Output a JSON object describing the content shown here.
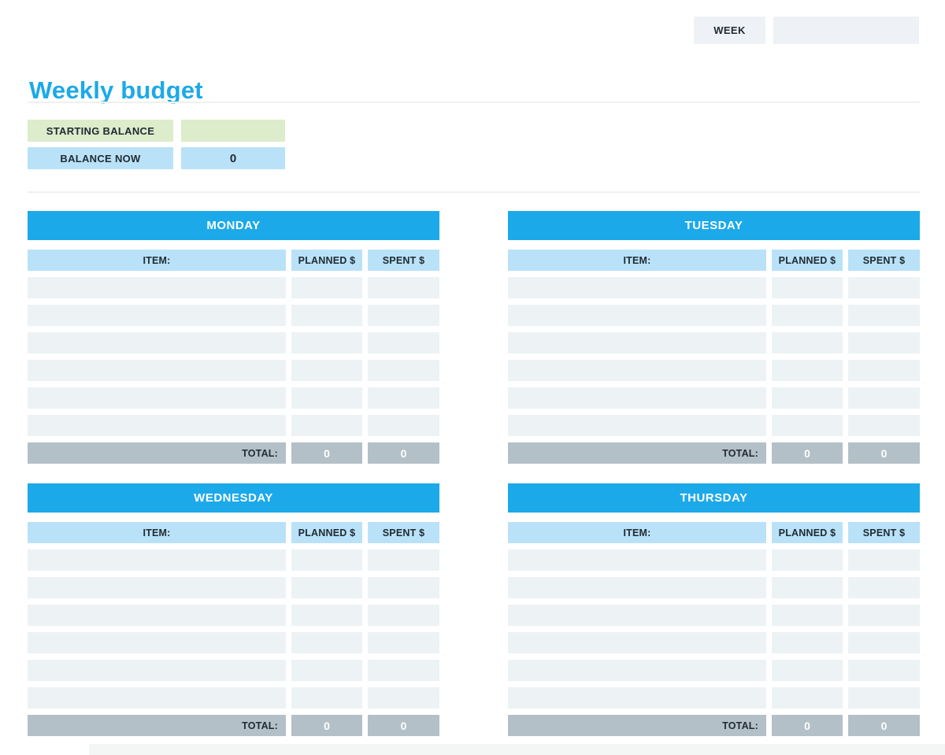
{
  "header": {
    "week_label": "WEEK",
    "week_value": ""
  },
  "title": "Weekly budget",
  "balance": {
    "starting_label": "STARTING BALANCE",
    "starting_value": "",
    "now_label": "BALANCE NOW",
    "now_value": "0"
  },
  "column_headers": {
    "item": "ITEM:",
    "planned": "PLANNED $",
    "spent": "SPENT $"
  },
  "total_label": "TOTAL:",
  "days": [
    {
      "name": "MONDAY",
      "rows": [
        {
          "item": "",
          "planned": "",
          "spent": ""
        },
        {
          "item": "",
          "planned": "",
          "spent": ""
        },
        {
          "item": "",
          "planned": "",
          "spent": ""
        },
        {
          "item": "",
          "planned": "",
          "spent": ""
        },
        {
          "item": "",
          "planned": "",
          "spent": ""
        },
        {
          "item": "",
          "planned": "",
          "spent": ""
        }
      ],
      "total": {
        "planned": "0",
        "spent": "0"
      }
    },
    {
      "name": "TUESDAY",
      "rows": [
        {
          "item": "",
          "planned": "",
          "spent": ""
        },
        {
          "item": "",
          "planned": "",
          "spent": ""
        },
        {
          "item": "",
          "planned": "",
          "spent": ""
        },
        {
          "item": "",
          "planned": "",
          "spent": ""
        },
        {
          "item": "",
          "planned": "",
          "spent": ""
        },
        {
          "item": "",
          "planned": "",
          "spent": ""
        }
      ],
      "total": {
        "planned": "0",
        "spent": "0"
      }
    },
    {
      "name": "WEDNESDAY",
      "rows": [
        {
          "item": "",
          "planned": "",
          "spent": ""
        },
        {
          "item": "",
          "planned": "",
          "spent": ""
        },
        {
          "item": "",
          "planned": "",
          "spent": ""
        },
        {
          "item": "",
          "planned": "",
          "spent": ""
        },
        {
          "item": "",
          "planned": "",
          "spent": ""
        },
        {
          "item": "",
          "planned": "",
          "spent": ""
        }
      ],
      "total": {
        "planned": "0",
        "spent": "0"
      }
    },
    {
      "name": "THURSDAY",
      "rows": [
        {
          "item": "",
          "planned": "",
          "spent": ""
        },
        {
          "item": "",
          "planned": "",
          "spent": ""
        },
        {
          "item": "",
          "planned": "",
          "spent": ""
        },
        {
          "item": "",
          "planned": "",
          "spent": ""
        },
        {
          "item": "",
          "planned": "",
          "spent": ""
        },
        {
          "item": "",
          "planned": "",
          "spent": ""
        }
      ],
      "total": {
        "planned": "0",
        "spent": "0"
      }
    }
  ],
  "colors": {
    "accent_blue": "#1ca9e9",
    "light_blue": "#b9e2f8",
    "row_fill": "#edf2f5",
    "total_gray": "#b4c0c8",
    "green": "#ddeccb",
    "field_gray": "#eef2f6"
  }
}
